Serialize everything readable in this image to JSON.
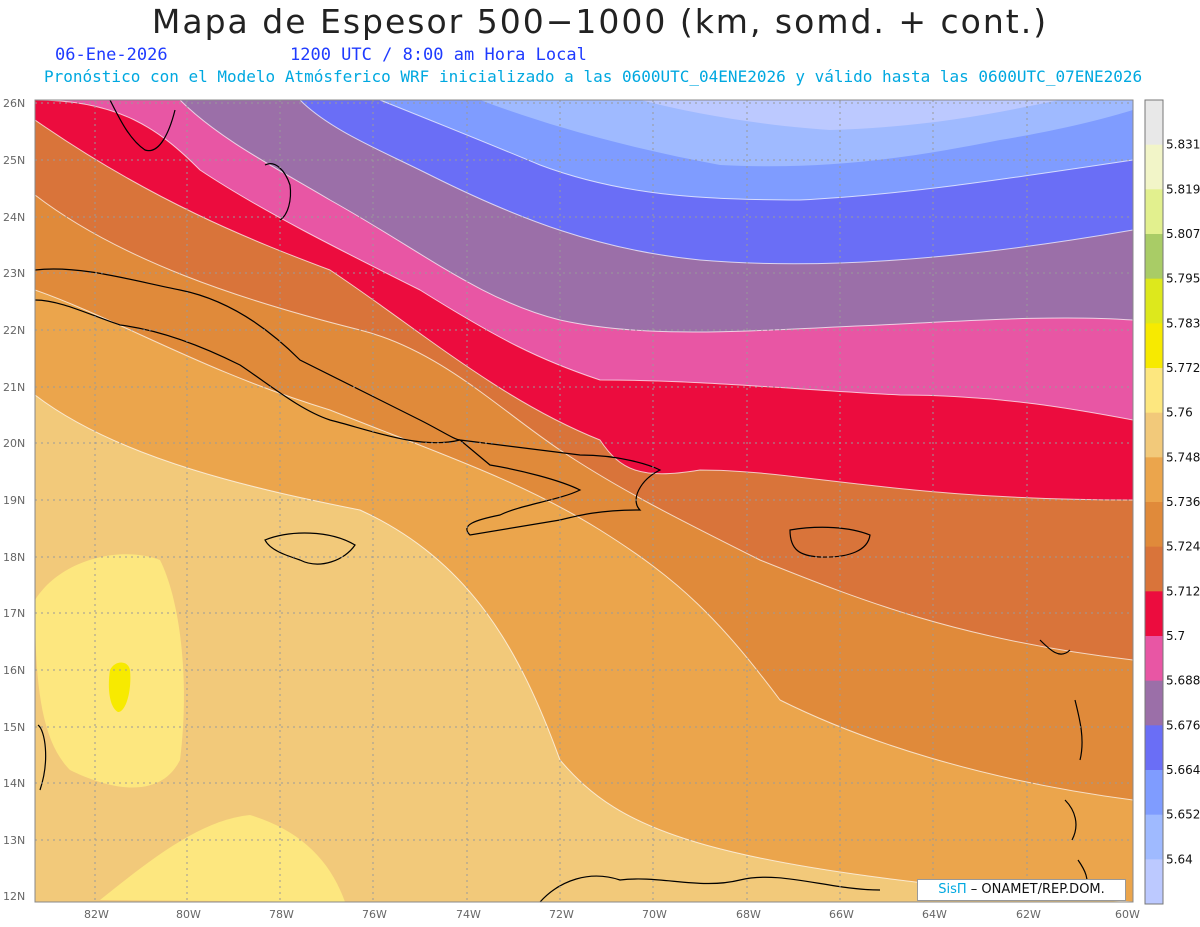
{
  "title": "Mapa de Espesor 500−1000 (km, somd. + cont.)",
  "date": "06-Ene-2026",
  "time": "1200 UTC / 8:00 am Hora Local",
  "subtitle": "Pronóstico con el Modelo Atmósferico WRF inicializado a las 0600UTC_04ENE2026 y válido hasta las  0600UTC_07ENE2026",
  "credit": {
    "brand": "SisΠ",
    "text": " – ONAMET/REP.DOM."
  },
  "map": {
    "lat_labels": [
      "26N",
      "25N",
      "24N",
      "23N",
      "22N",
      "21N",
      "20N",
      "19N",
      "18N",
      "17N",
      "16N",
      "15N",
      "14N",
      "13N",
      "12N"
    ],
    "lon_labels": [
      "82W",
      "80W",
      "78W",
      "76W",
      "74W",
      "72W",
      "70W",
      "68W",
      "66W",
      "64W",
      "62W",
      "60W"
    ]
  },
  "colorbar": {
    "levels": [
      "5.831",
      "5.819",
      "5.807",
      "5.795",
      "5.783",
      "5.772",
      "5.76",
      "5.748",
      "5.736",
      "5.724",
      "5.712",
      "5.7",
      "5.688",
      "5.676",
      "5.664",
      "5.652",
      "5.64"
    ],
    "colors": [
      "#e8e8e8",
      "#f2f5c8",
      "#e2f08e",
      "#a9cc66",
      "#dde81c",
      "#f7ea00",
      "#fde77f",
      "#f2c97a",
      "#eba54c",
      "#e08a3a",
      "#d9743a",
      "#ec0c3e",
      "#e856a4",
      "#9b6fa8",
      "#6a6ef6",
      "#7f9cff",
      "#9fbaff",
      "#bcc9ff"
    ]
  }
}
